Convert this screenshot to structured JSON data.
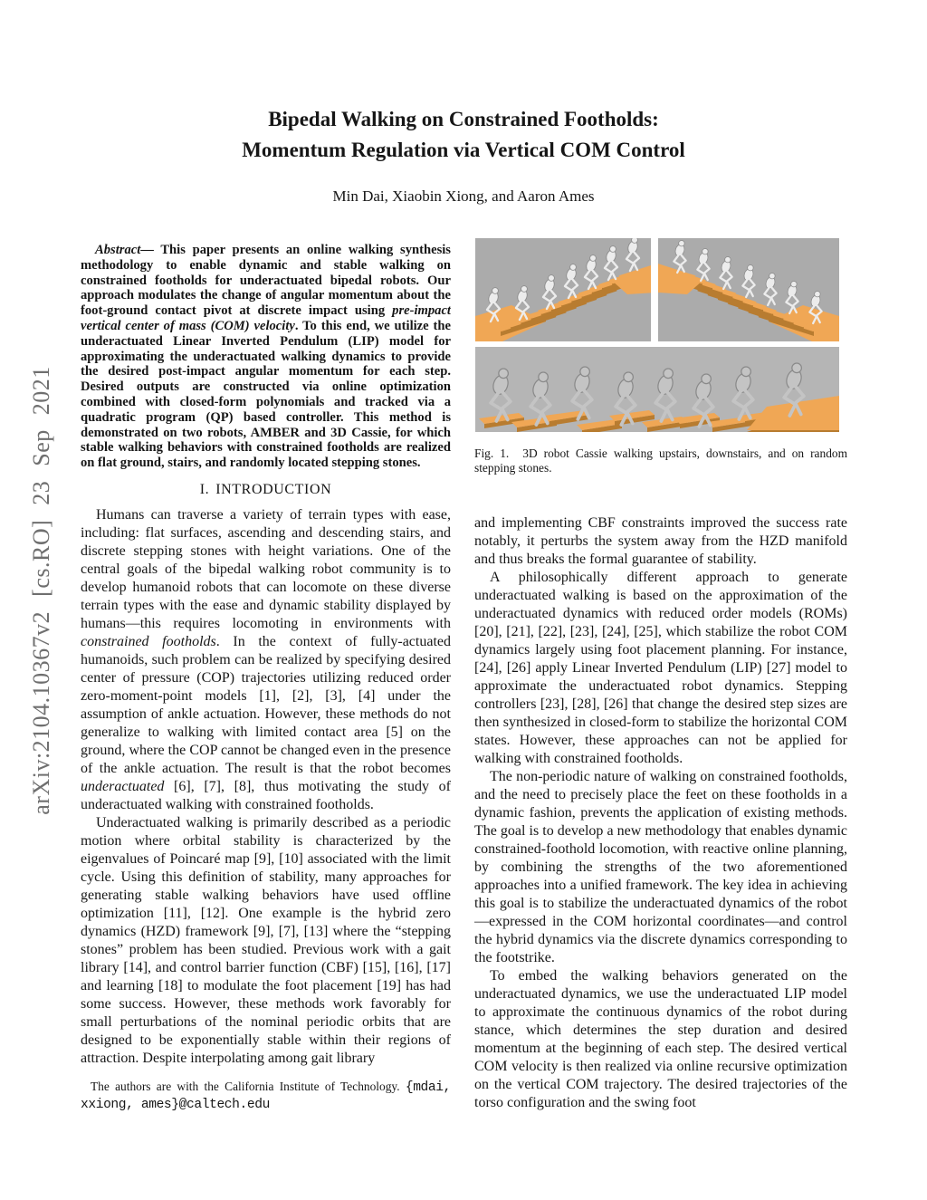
{
  "arxiv_watermark": "arXiv:2104.10367v2 [cs.RO] 23 Sep 2021",
  "header": {
    "title_line1": "Bipedal Walking on Constrained Footholds:",
    "title_line2": "Momentum Regulation via Vertical COM Control",
    "authors": "Min Dai, Xiaobin Xiong, and Aaron Ames"
  },
  "left_column": {
    "abstract": {
      "segments": [
        {
          "t": "Abstract",
          "s": "i"
        },
        {
          "t": "— This paper presents an online walking synthesis methodology to enable dynamic and stable walking on constrained footholds for underactuated bipedal robots. Our approach modulates the change of angular momentum about the foot-ground contact pivot at discrete impact using "
        },
        {
          "t": "pre-impact vertical center of mass (COM) velocity",
          "s": "i"
        },
        {
          "t": ". To this end, we utilize the underactuated Linear Inverted Pendulum (LIP) model for approximating the underactuated walking dynamics to provide the desired post-impact angular momentum for each step. Desired outputs are constructed via online optimization combined with closed-form polynomials and tracked via a quadratic program (QP) based controller. This method is demonstrated on two robots, AMBER and 3D Cassie, for which stable walking behaviors with constrained footholds are realized on flat ground, stairs, and randomly located stepping stones."
        }
      ]
    },
    "section_heading": {
      "number": "I.",
      "title": "INTRODUCTION"
    },
    "paragraphs": [
      {
        "segments": [
          {
            "t": "Humans can traverse a variety of terrain types with ease, including: flat surfaces, ascending and descending stairs, and discrete stepping stones with height variations. One of the central goals of the bipedal walking robot community is to develop humanoid robots that can locomote on these diverse terrain types with the ease and dynamic stability displayed by humans—this requires locomoting in environments with "
          },
          {
            "t": "constrained footholds",
            "s": "i"
          },
          {
            "t": ". In the context of fully-actuated humanoids, such problem can be realized by specifying desired center of pressure (COP) trajectories utilizing reduced order zero-moment-point models [1], [2], [3], [4] under the assumption of ankle actuation. However, these methods do not generalize to walking with limited contact area [5] on the ground, where the COP cannot be changed even in the presence of the ankle actuation. The result is that the robot becomes "
          },
          {
            "t": "underactuated",
            "s": "i"
          },
          {
            "t": " [6], [7], [8], thus motivating the study of underactuated walking with constrained footholds."
          }
        ]
      },
      {
        "segments": [
          {
            "t": "Underactuated walking is primarily described as a periodic motion where orbital stability is characterized by the eigenvalues of Poincaré map [9], [10] associated with the limit cycle. Using this definition of stability, many approaches for generating stable walking behaviors have used offline optimization [11], [12]. One example is the hybrid zero dynamics (HZD) framework [9], [7], [13] where the “stepping stones” problem has been studied. Previous work with a gait library [14], and control barrier function (CBF) [15], [16], [17] and learning [18] to modulate the foot placement [19] has had some success. However, these methods work favorably for small perturbations of the nominal periodic orbits that are designed to be exponentially stable within their regions of attraction. Despite interpolating among gait library"
          }
        ]
      }
    ],
    "footnote": {
      "segments": [
        {
          "t": "The authors are with the California Institute of Technology. "
        },
        {
          "t": "{mdai, xxiong, ames}@caltech.edu",
          "s": "tt"
        }
      ]
    }
  },
  "right_column": {
    "figure": {
      "caption_label": "Fig. 1.",
      "caption_text": "3D robot Cassie walking upstairs, downstairs, and on random stepping stones.",
      "panels": [
        "cassie-walking-upstairs",
        "cassie-walking-downstairs",
        "cassie-walking-on-random-stepping-stones"
      ],
      "colors": {
        "panel_background": "#ababab",
        "ground_background": "#b5b5b5",
        "steps": "#f0a755",
        "steps_shadow": "#b87c30",
        "robot_light": "#ececec",
        "robot_dark": "#c4c4c4"
      }
    },
    "paragraphs": [
      {
        "segments": [
          {
            "t": "and implementing CBF constraints improved the success rate notably, it perturbs the system away from the HZD manifold and thus breaks the formal guarantee of stability."
          }
        ]
      },
      {
        "segments": [
          {
            "t": "A philosophically different approach to generate underactuated walking is based on the approximation of the underactuated dynamics with reduced order models (ROMs) [20], [21], [22], [23], [24], [25], which stabilize the robot COM dynamics largely using foot placement planning. For instance, [24], [26] apply Linear Inverted Pendulum (LIP) [27] model to approximate the underactuated robot dynamics. Stepping controllers [23], [28], [26] that change the desired step sizes are then synthesized in closed-form to stabilize the horizontal COM states. However, these approaches can not be applied for walking with constrained footholds."
          }
        ]
      },
      {
        "segments": [
          {
            "t": "The non-periodic nature of walking on constrained footholds, and the need to precisely place the feet on these footholds in a dynamic fashion, prevents the application of existing methods. The goal is to develop a new methodology that enables dynamic constrained-foothold locomotion, with reactive online planning, by combining the strengths of the two aforementioned approaches into a unified framework. The key idea in achieving this goal is to stabilize the underactuated dynamics of the robot—expressed in the COM horizontal coordinates—and control the hybrid dynamics via the discrete dynamics corresponding to the footstrike."
          }
        ]
      },
      {
        "segments": [
          {
            "t": "To embed the walking behaviors generated on the underactuated dynamics, we use the underactuated LIP model to approximate the continuous dynamics of the robot during stance, which determines the step duration and desired momentum at the beginning of each step. The desired vertical COM velocity is then realized via online recursive optimization on the vertical COM trajectory. The desired trajectories of the torso configuration and the swing foot"
          }
        ]
      }
    ]
  }
}
